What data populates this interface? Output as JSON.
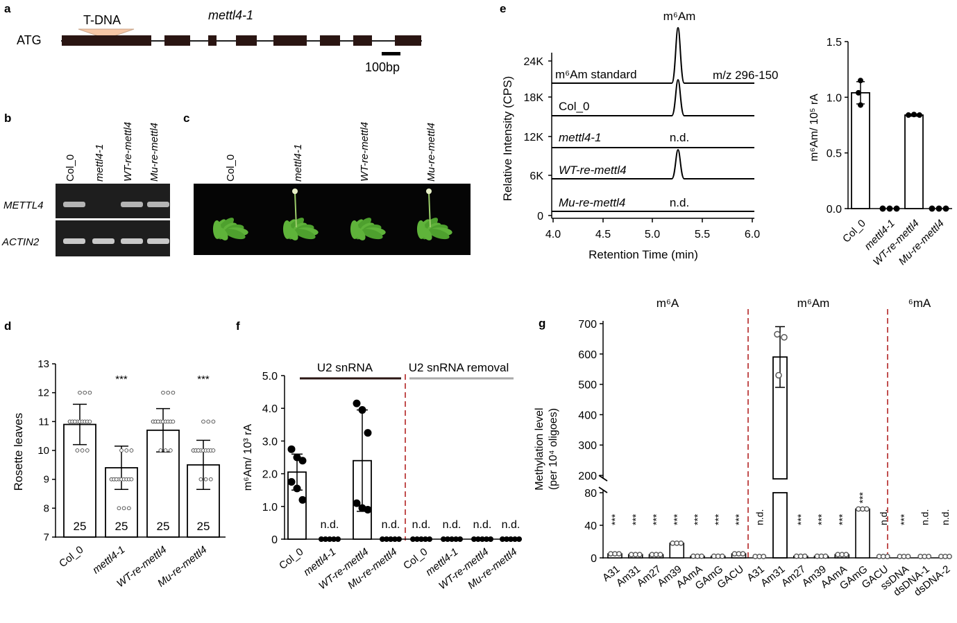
{
  "panel_a": {
    "label": "a",
    "atg": "ATG",
    "tdna": "T-DNA",
    "gene": "mettl4-1",
    "scale": "100bp"
  },
  "panel_b": {
    "label": "b",
    "lanes": [
      "Col_0",
      "mettl4-1",
      "WT-re-mettl4",
      "Mu-re-mettl4"
    ],
    "rows": [
      "METTL4",
      "ACTIN2"
    ],
    "bands_mettl4": [
      1,
      0,
      1,
      1
    ],
    "bands_actin2": [
      1,
      1,
      1,
      1
    ]
  },
  "panel_c": {
    "label": "c",
    "lanes": [
      "Col_0",
      "mettl4-1",
      "WT-re-mettl4",
      "Mu-re-mettl4"
    ]
  },
  "panel_d": {
    "label": "d",
    "ylabel": "Rosette leaves",
    "sig": [
      "",
      "***",
      "",
      "***"
    ],
    "n": [
      "25",
      "25",
      "25",
      "25"
    ],
    "chart_data": {
      "type": "bar",
      "categories": [
        "Col_0",
        "mettl4-1",
        "WT-re-mettl4",
        "Mu-re-mettl4"
      ],
      "values": [
        10.9,
        9.4,
        10.7,
        9.5
      ],
      "errors": [
        0.7,
        0.75,
        0.75,
        0.85
      ],
      "ylim": [
        7,
        13
      ],
      "yticks": [
        "7",
        "8",
        "9",
        "10",
        "11",
        "12",
        "13"
      ]
    }
  },
  "panel_e": {
    "label": "e",
    "peak_label": "m⁶Am",
    "mz": "m/z 296-150",
    "ylabel": "Relative Intensity (CPS)",
    "xlabel": "Retention Time (min)",
    "xticks": [
      "4.0",
      "4.5",
      "5.0",
      "5.5",
      "6.0"
    ],
    "yticks": [
      "0",
      "6K",
      "12K",
      "18K",
      "24K"
    ],
    "traces": [
      {
        "name": "m⁶Am standard",
        "peak": true,
        "nd": ""
      },
      {
        "name": "Col_0",
        "peak": true,
        "nd": ""
      },
      {
        "name": "mettl4-1",
        "peak": false,
        "nd": "n.d."
      },
      {
        "name": "WT-re-mettl4",
        "peak": true,
        "nd": ""
      },
      {
        "name": "Mu-re-mettl4",
        "peak": false,
        "nd": "n.d."
      }
    ],
    "bar": {
      "ylabel": "m⁶Am/ 10⁵ rA",
      "yticks": [
        "0.0",
        "0.5",
        "1.0",
        "1.5"
      ],
      "chart_data": {
        "type": "bar",
        "categories": [
          "Col_0",
          "mettl4-1",
          "WT-re-mettl4",
          "Mu-re-mettl4"
        ],
        "values": [
          1.04,
          0.0,
          0.84,
          0.0
        ],
        "errors": [
          0.1,
          0,
          0.01,
          0
        ],
        "ylim": [
          0,
          1.5
        ]
      }
    }
  },
  "panel_f": {
    "label": "f",
    "ylabel": "m⁶Am/ 10³ rA",
    "group1": "U2 snRNA",
    "group2": "U2 snRNA removal",
    "nd": "n.d.",
    "yticks": [
      "0",
      "1.0",
      "2.0",
      "3.0",
      "4.0",
      "5.0"
    ],
    "chart_data": {
      "type": "bar",
      "categories": [
        "Col_0",
        "mettl4-1",
        "WT-re-mettl4",
        "Mu-re-mettl4",
        "Col_0",
        "mettl4-1",
        "WT-re-mettl4",
        "Mu-re-mettl4"
      ],
      "values": [
        2.05,
        0,
        2.4,
        0,
        0,
        0,
        0,
        0
      ],
      "errors": [
        0.55,
        0,
        1.55,
        0,
        0,
        0,
        0,
        0
      ],
      "ylim": [
        0,
        5
      ],
      "nd": [
        false,
        true,
        false,
        true,
        true,
        true,
        true,
        true
      ]
    }
  },
  "panel_g": {
    "label": "g",
    "ylabel1": "Methylation level",
    "ylabel2": "(per 10⁴ oligoes)",
    "groups": [
      "m⁶A",
      "m⁶Am",
      "⁶mA"
    ],
    "yticks_low": [
      "0",
      "40",
      "80"
    ],
    "yticks_high": [
      "200",
      "300",
      "400",
      "500",
      "600",
      "700"
    ],
    "chart_data": {
      "type": "bar",
      "categories": [
        "A31",
        "Am31",
        "Am27",
        "Am39",
        "AAmA",
        "GAmG",
        "GACU",
        "A31",
        "Am31",
        "Am27",
        "Am39",
        "AAmA",
        "GAmG",
        "GACU",
        "ssDNA",
        "dsDNA-1",
        "dsDNA-2"
      ],
      "values": [
        5,
        4,
        4,
        18,
        2,
        2,
        5,
        0,
        590,
        2,
        2,
        4,
        60,
        0,
        0,
        0,
        0
      ],
      "errors": [
        0,
        0,
        0,
        0,
        0,
        0,
        0,
        0,
        100,
        0,
        0,
        0,
        0,
        0,
        0,
        0,
        0
      ],
      "labels": [
        "***",
        "***",
        "***",
        "***",
        "***",
        "***",
        "***",
        "n.d.",
        "",
        "***",
        "***",
        "***",
        "***",
        "n.d.",
        "***",
        "n.d.",
        "n.d."
      ],
      "ylim": [
        0,
        700
      ]
    }
  }
}
